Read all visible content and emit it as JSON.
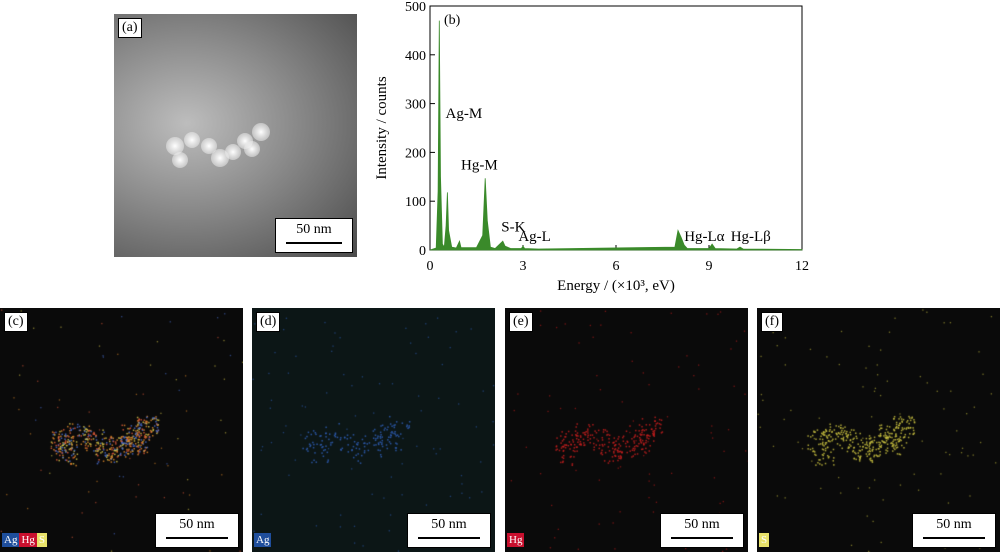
{
  "panels": {
    "a": {
      "label": "(a)",
      "scale": "50 nm"
    },
    "b": {
      "label": "(b)"
    },
    "c": {
      "label": "(c)",
      "scale": "50 nm",
      "legend": [
        {
          "text": "Ag",
          "color": "#1f4e9c",
          "fg": "#ffffff"
        },
        {
          "text": "Hg",
          "color": "#c8102e",
          "fg": "#ffffff"
        },
        {
          "text": "S",
          "color": "#e8e26a",
          "fg": "#ffffff"
        }
      ]
    },
    "d": {
      "label": "(d)",
      "scale": "50 nm",
      "legend": [
        {
          "text": "Ag",
          "color": "#1f4e9c",
          "fg": "#ffffff"
        }
      ]
    },
    "e": {
      "label": "(e)",
      "scale": "50 nm",
      "legend": [
        {
          "text": "Hg",
          "color": "#c8102e",
          "fg": "#ffffff"
        }
      ]
    },
    "f": {
      "label": "(f)",
      "scale": "50 nm",
      "legend": [
        {
          "text": "S",
          "color": "#e8e26a",
          "fg": "#ffffff"
        }
      ]
    }
  },
  "chart_data": {
    "type": "line",
    "xlabel": "Energy / (×10³, eV)",
    "ylabel": "Intensity / counts",
    "xlim": [
      0,
      12
    ],
    "ylim": [
      0,
      500
    ],
    "xticks": [
      0,
      3,
      6,
      9,
      12
    ],
    "yticks": [
      0,
      100,
      200,
      300,
      400,
      500
    ],
    "series_color": "#3a8a2a",
    "x": [
      0.0,
      0.2,
      0.26,
      0.3,
      0.34,
      0.4,
      0.46,
      0.52,
      0.56,
      0.6,
      0.7,
      0.85,
      0.95,
      1.0,
      1.5,
      1.7,
      1.78,
      1.85,
      1.95,
      2.1,
      2.28,
      2.35,
      2.42,
      2.6,
      2.95,
      3.0,
      3.05,
      3.5,
      7.9,
      8.0,
      8.1,
      8.2,
      8.3,
      9.0,
      9.1,
      9.2,
      9.9,
      10.0,
      10.1,
      12.0
    ],
    "y": [
      0,
      4,
      120,
      470,
      150,
      12,
      6,
      50,
      118,
      40,
      6,
      4,
      18,
      5,
      5,
      30,
      147,
      60,
      6,
      3,
      14,
      18,
      8,
      3,
      3,
      8,
      3,
      2,
      6,
      40,
      26,
      10,
      3,
      3,
      12,
      3,
      2,
      6,
      2,
      1
    ],
    "annotations": [
      {
        "text": "Ag-M",
        "x": 0.5,
        "y": 270
      },
      {
        "text": "Hg-M",
        "x": 1.0,
        "y": 165
      },
      {
        "text": "S-K",
        "x": 2.3,
        "y": 38
      },
      {
        "text": "Ag-L",
        "x": 2.85,
        "y": 18
      },
      {
        "text": "Hg-Lα",
        "x": 8.2,
        "y": 18
      },
      {
        "text": "Hg-Lβ",
        "x": 9.7,
        "y": 18
      }
    ]
  }
}
